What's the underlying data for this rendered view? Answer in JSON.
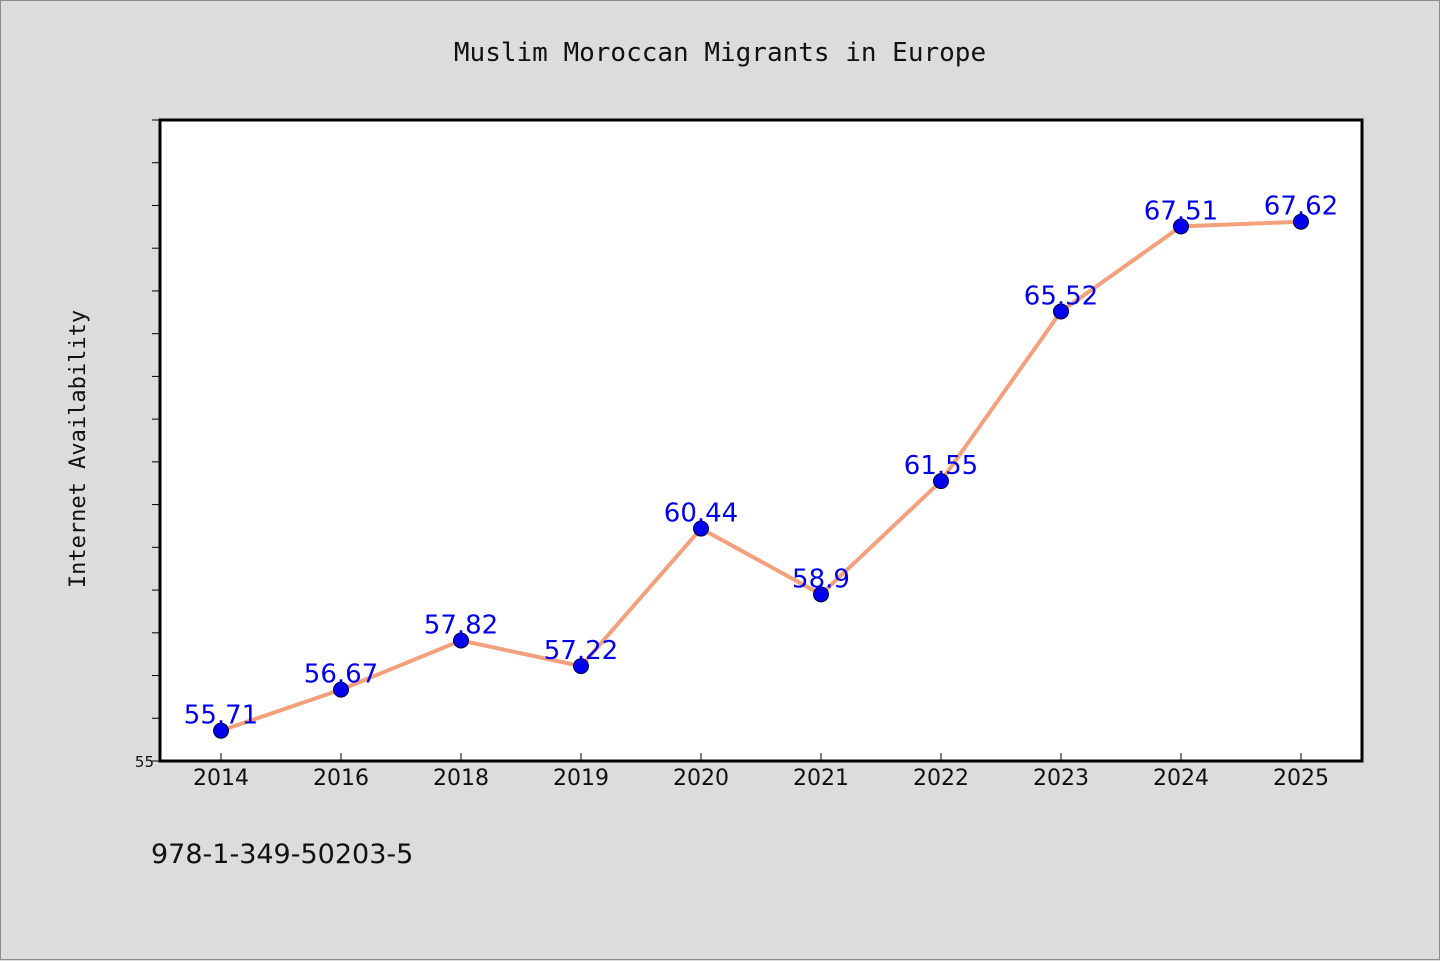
{
  "chart_data": {
    "type": "line",
    "title": "Muslim Moroccan Migrants in Europe",
    "xlabel": "",
    "ylabel": "Internet Availability",
    "categories": [
      "2014",
      "2016",
      "2018",
      "2019",
      "2020",
      "2021",
      "2022",
      "2023",
      "2024",
      "2025"
    ],
    "series": [
      {
        "values": [
          55.71,
          56.67,
          57.82,
          57.22,
          60.44,
          58.9,
          61.55,
          65.52,
          67.51,
          67.62
        ],
        "labels": [
          "55.71",
          "56.67",
          "57.82",
          "57.22",
          "60.44",
          "58.9",
          "61.55",
          "65.52",
          "67.51",
          "67.62"
        ]
      }
    ],
    "ylim": [
      55,
      70
    ],
    "y_tick_labels": [
      "55"
    ],
    "y_minor_step": 1,
    "grid": false,
    "legend": "none",
    "colors": {
      "line": "#f4a07c",
      "marker": "#0000ee",
      "data_label": "#0000ee",
      "plot_background": "#ffffff",
      "figure_background": "#dcdcdc"
    }
  },
  "footer": {
    "code": "978-1-349-50203-5"
  }
}
